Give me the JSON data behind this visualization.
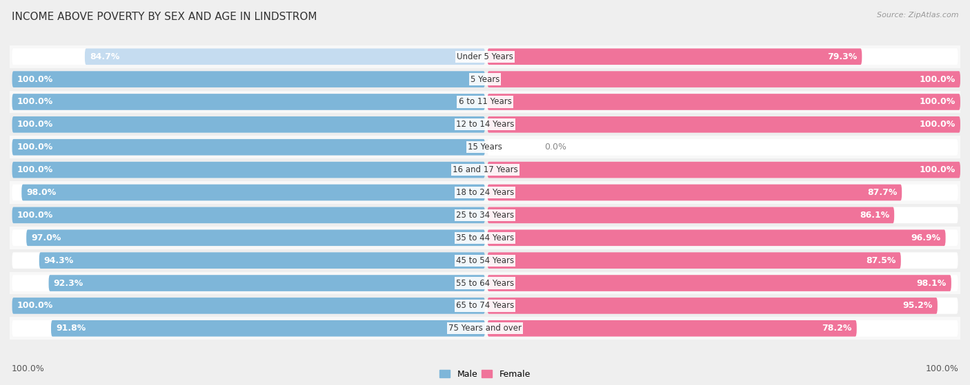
{
  "title": "INCOME ABOVE POVERTY BY SEX AND AGE IN LINDSTROM",
  "source": "Source: ZipAtlas.com",
  "categories": [
    "Under 5 Years",
    "5 Years",
    "6 to 11 Years",
    "12 to 14 Years",
    "15 Years",
    "16 and 17 Years",
    "18 to 24 Years",
    "25 to 34 Years",
    "35 to 44 Years",
    "45 to 54 Years",
    "55 to 64 Years",
    "65 to 74 Years",
    "75 Years and over"
  ],
  "male": [
    84.7,
    100.0,
    100.0,
    100.0,
    100.0,
    100.0,
    98.0,
    100.0,
    97.0,
    94.3,
    92.3,
    100.0,
    91.8
  ],
  "female": [
    79.3,
    100.0,
    100.0,
    100.0,
    0.0,
    100.0,
    87.7,
    86.1,
    96.9,
    87.5,
    98.1,
    95.2,
    78.2
  ],
  "male_color": "#7EB6D9",
  "female_color": "#F0739A",
  "female_color_light": "#F5B8CF",
  "male_color_light": "#C5DCF0",
  "bg_color": "#EFEFEF",
  "bar_bg_color": "#E8E8E8",
  "row_bg_even": "#F8F8F8",
  "row_bg_odd": "#EEEEEE",
  "title_fontsize": 11,
  "label_fontsize": 9,
  "category_fontsize": 8.5,
  "legend_fontsize": 9,
  "source_fontsize": 8,
  "bar_height": 0.72,
  "footer_male": "100.0%",
  "footer_female": "100.0%"
}
